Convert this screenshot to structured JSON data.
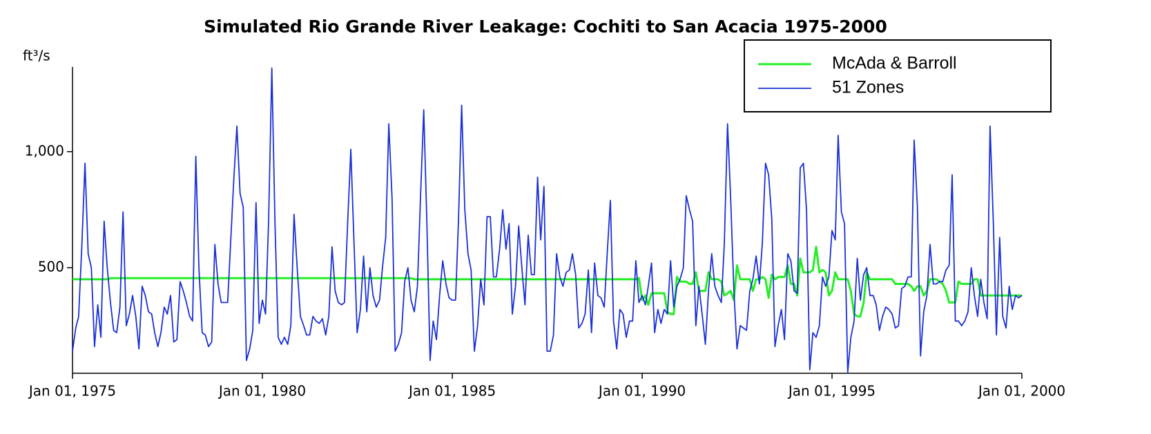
{
  "chart_data": {
    "type": "line",
    "title": "Simulated Rio Grande River Leakage: Cochiti to San Acacia 1975-2000",
    "y_label": "ft³/s",
    "xlim": [
      "1975-01-01",
      "2000-01-01"
    ],
    "xticks": [
      {
        "value": "1975-01-01",
        "label": "Jan 01, 1975"
      },
      {
        "value": "1980-01-01",
        "label": "Jan 01, 1980"
      },
      {
        "value": "1985-01-01",
        "label": "Jan 01, 1985"
      },
      {
        "value": "1990-01-01",
        "label": "Jan 01, 1990"
      },
      {
        "value": "1995-01-01",
        "label": "Jan 01, 1995"
      },
      {
        "value": "2000-01-01",
        "label": "Jan 01, 2000"
      }
    ],
    "ylim": [
      45,
      1365
    ],
    "yticks": [
      500,
      {
        "value": 1000,
        "label": "1,000"
      }
    ],
    "legend": "top-right",
    "x": [
      "1975-01-01",
      "1975-02-01",
      "1975-03-01",
      "1975-04-01",
      "1975-05-01",
      "1975-06-01",
      "1975-07-01",
      "1975-08-01",
      "1975-09-01",
      "1975-10-01",
      "1975-11-01",
      "1975-12-01",
      "1976-01-01",
      "1976-02-01",
      "1976-03-01",
      "1976-04-01",
      "1976-05-01",
      "1976-06-01",
      "1976-07-01",
      "1976-08-01",
      "1976-09-01",
      "1976-10-01",
      "1976-11-01",
      "1976-12-01",
      "1977-01-01",
      "1977-02-01",
      "1977-03-01",
      "1977-04-01",
      "1977-05-01",
      "1977-06-01",
      "1977-07-01",
      "1977-08-01",
      "1977-09-01",
      "1977-10-01",
      "1977-11-01",
      "1977-12-01",
      "1978-01-01",
      "1978-02-01",
      "1978-03-01",
      "1978-04-01",
      "1978-05-01",
      "1978-06-01",
      "1978-07-01",
      "1978-08-01",
      "1978-09-01",
      "1978-10-01",
      "1978-11-01",
      "1978-12-01",
      "1979-01-01",
      "1979-02-01",
      "1979-03-01",
      "1979-04-01",
      "1979-05-01",
      "1979-06-01",
      "1979-07-01",
      "1979-08-01",
      "1979-09-01",
      "1979-10-01",
      "1979-11-01",
      "1979-12-01",
      "1980-01-01",
      "1980-02-01",
      "1980-03-01",
      "1980-04-01",
      "1980-05-01",
      "1980-06-01",
      "1980-07-01",
      "1980-08-01",
      "1980-09-01",
      "1980-10-01",
      "1980-11-01",
      "1980-12-01",
      "1981-01-01",
      "1981-02-01",
      "1981-03-01",
      "1981-04-01",
      "1981-05-01",
      "1981-06-01",
      "1981-07-01",
      "1981-08-01",
      "1981-09-01",
      "1981-10-01",
      "1981-11-01",
      "1981-12-01",
      "1982-01-01",
      "1982-02-01",
      "1982-03-01",
      "1982-04-01",
      "1982-05-01",
      "1982-06-01",
      "1982-07-01",
      "1982-08-01",
      "1982-09-01",
      "1982-10-01",
      "1982-11-01",
      "1982-12-01",
      "1983-01-01",
      "1983-02-01",
      "1983-03-01",
      "1983-04-01",
      "1983-05-01",
      "1983-06-01",
      "1983-07-01",
      "1983-08-01",
      "1983-09-01",
      "1983-10-01",
      "1983-11-01",
      "1983-12-01",
      "1984-01-01",
      "1984-02-01",
      "1984-03-01",
      "1984-04-01",
      "1984-05-01",
      "1984-06-01",
      "1984-07-01",
      "1984-08-01",
      "1984-09-01",
      "1984-10-01",
      "1984-11-01",
      "1984-12-01",
      "1985-01-01",
      "1985-02-01",
      "1985-03-01",
      "1985-04-01",
      "1985-05-01",
      "1985-06-01",
      "1985-07-01",
      "1985-08-01",
      "1985-09-01",
      "1985-10-01",
      "1985-11-01",
      "1985-12-01",
      "1986-01-01",
      "1986-02-01",
      "1986-03-01",
      "1986-04-01",
      "1986-05-01",
      "1986-06-01",
      "1986-07-01",
      "1986-08-01",
      "1986-09-01",
      "1986-10-01",
      "1986-11-01",
      "1986-12-01",
      "1987-01-01",
      "1987-02-01",
      "1987-03-01",
      "1987-04-01",
      "1987-05-01",
      "1987-06-01",
      "1987-07-01",
      "1987-08-01",
      "1987-09-01",
      "1987-10-01",
      "1987-11-01",
      "1987-12-01",
      "1988-01-01",
      "1988-02-01",
      "1988-03-01",
      "1988-04-01",
      "1988-05-01",
      "1988-06-01",
      "1988-07-01",
      "1988-08-01",
      "1988-09-01",
      "1988-10-01",
      "1988-11-01",
      "1988-12-01",
      "1989-01-01",
      "1989-02-01",
      "1989-03-01",
      "1989-04-01",
      "1989-05-01",
      "1989-06-01",
      "1989-07-01",
      "1989-08-01",
      "1989-09-01",
      "1989-10-01",
      "1989-11-01",
      "1989-12-01",
      "1990-01-01",
      "1990-02-01",
      "1990-03-01",
      "1990-04-01",
      "1990-05-01",
      "1990-06-01",
      "1990-07-01",
      "1990-08-01",
      "1990-09-01",
      "1990-10-01",
      "1990-11-01",
      "1990-12-01",
      "1991-01-01",
      "1991-02-01",
      "1991-03-01",
      "1991-04-01",
      "1991-05-01",
      "1991-06-01",
      "1991-07-01",
      "1991-08-01",
      "1991-09-01",
      "1991-10-01",
      "1991-11-01",
      "1991-12-01",
      "1992-01-01",
      "1992-02-01",
      "1992-03-01",
      "1992-04-01",
      "1992-05-01",
      "1992-06-01",
      "1992-07-01",
      "1992-08-01",
      "1992-09-01",
      "1992-10-01",
      "1992-11-01",
      "1992-12-01",
      "1993-01-01",
      "1993-02-01",
      "1993-03-01",
      "1993-04-01",
      "1993-05-01",
      "1993-06-01",
      "1993-07-01",
      "1993-08-01",
      "1993-09-01",
      "1993-10-01",
      "1993-11-01",
      "1993-12-01",
      "1994-01-01",
      "1994-02-01",
      "1994-03-01",
      "1994-04-01",
      "1994-05-01",
      "1994-06-01",
      "1994-07-01",
      "1994-08-01",
      "1994-09-01",
      "1994-10-01",
      "1994-11-01",
      "1994-12-01",
      "1995-01-01",
      "1995-02-01",
      "1995-03-01",
      "1995-04-01",
      "1995-05-01",
      "1995-06-01",
      "1995-07-01",
      "1995-08-01",
      "1995-09-01",
      "1995-10-01",
      "1995-11-01",
      "1995-12-01",
      "1996-01-01",
      "1996-02-01",
      "1996-03-01",
      "1996-04-01",
      "1996-05-01",
      "1996-06-01",
      "1996-07-01",
      "1996-08-01",
      "1996-09-01",
      "1996-10-01",
      "1996-11-01",
      "1996-12-01",
      "1997-01-01",
      "1997-02-01",
      "1997-03-01",
      "1997-04-01",
      "1997-05-01",
      "1997-06-01",
      "1997-07-01",
      "1997-08-01",
      "1997-09-01",
      "1997-10-01",
      "1997-11-01",
      "1997-12-01",
      "1998-01-01",
      "1998-02-01",
      "1998-03-01",
      "1998-04-01",
      "1998-05-01",
      "1998-06-01",
      "1998-07-01",
      "1998-08-01",
      "1998-09-01",
      "1998-10-01",
      "1998-11-01",
      "1998-12-01",
      "1999-01-01",
      "1999-02-01",
      "1999-03-01",
      "1999-04-01",
      "1999-05-01",
      "1999-06-01",
      "1999-07-01",
      "1999-08-01",
      "1999-09-01",
      "1999-10-01",
      "1999-11-01",
      "1999-12-01",
      "2000-01-01"
    ],
    "series": [
      {
        "name": "McAda & Barroll",
        "color": "#22ee22",
        "values": [
          450,
          450,
          450,
          450,
          450,
          450,
          450,
          450,
          450,
          450,
          450,
          450,
          455,
          455,
          455,
          455,
          455,
          455,
          455,
          455,
          455,
          455,
          455,
          455,
          455,
          455,
          455,
          455,
          455,
          455,
          455,
          455,
          455,
          455,
          455,
          455,
          455,
          455,
          455,
          455,
          455,
          455,
          455,
          455,
          455,
          455,
          455,
          455,
          455,
          455,
          455,
          455,
          455,
          455,
          455,
          455,
          455,
          455,
          455,
          455,
          455,
          455,
          455,
          455,
          455,
          455,
          455,
          455,
          455,
          455,
          455,
          455,
          455,
          455,
          455,
          455,
          455,
          455,
          455,
          455,
          455,
          455,
          455,
          455,
          455,
          455,
          455,
          455,
          455,
          455,
          455,
          455,
          455,
          455,
          455,
          455,
          455,
          455,
          455,
          455,
          455,
          455,
          455,
          455,
          455,
          455,
          455,
          455,
          450,
          450,
          450,
          450,
          450,
          450,
          450,
          450,
          450,
          450,
          450,
          450,
          450,
          450,
          450,
          450,
          450,
          450,
          450,
          450,
          450,
          450,
          450,
          450,
          450,
          450,
          450,
          450,
          450,
          450,
          450,
          450,
          450,
          450,
          450,
          450,
          450,
          450,
          450,
          450,
          450,
          450,
          450,
          450,
          450,
          450,
          450,
          450,
          450,
          450,
          450,
          450,
          450,
          450,
          450,
          450,
          450,
          450,
          450,
          450,
          450,
          450,
          450,
          450,
          450,
          450,
          450,
          450,
          450,
          450,
          450,
          455,
          360,
          380,
          340,
          390,
          390,
          390,
          390,
          390,
          310,
          300,
          300,
          460,
          440,
          440,
          440,
          430,
          430,
          480,
          400,
          400,
          400,
          480,
          450,
          450,
          450,
          440,
          380,
          390,
          400,
          360,
          510,
          450,
          450,
          450,
          450,
          400,
          450,
          450,
          460,
          450,
          370,
          470,
          450,
          460,
          460,
          460,
          510,
          430,
          430,
          380,
          540,
          480,
          480,
          480,
          490,
          590,
          480,
          490,
          480,
          380,
          400,
          480,
          450,
          450,
          450,
          450,
          400,
          300,
          290,
          290,
          350,
          480,
          450,
          450,
          450,
          450,
          450,
          450,
          450,
          450,
          430,
          430,
          430,
          430,
          430,
          420,
          400,
          420,
          420,
          380,
          400,
          450,
          450,
          450,
          440,
          430,
          400,
          350,
          350,
          350,
          440,
          430,
          430,
          430,
          430,
          450,
          450,
          380,
          380,
          380,
          380,
          380,
          380,
          380,
          380,
          380,
          380,
          380,
          380,
          380,
          380
        ]
      },
      {
        "name": "51 Zones",
        "color": "#1a2fd6",
        "values": [
          140,
          240,
          290,
          600,
          950,
          560,
          500,
          160,
          340,
          200,
          700,
          500,
          350,
          230,
          220,
          330,
          740,
          250,
          300,
          380,
          290,
          150,
          420,
          380,
          310,
          300,
          220,
          160,
          220,
          330,
          300,
          380,
          180,
          190,
          440,
          400,
          350,
          290,
          270,
          980,
          500,
          220,
          210,
          160,
          180,
          600,
          430,
          350,
          350,
          350,
          600,
          880,
          1110,
          820,
          760,
          100,
          150,
          230,
          780,
          260,
          360,
          300,
          700,
          1360,
          700,
          200,
          170,
          200,
          170,
          250,
          730,
          500,
          290,
          250,
          210,
          210,
          290,
          270,
          260,
          280,
          210,
          290,
          590,
          400,
          350,
          340,
          350,
          700,
          1010,
          600,
          220,
          320,
          550,
          310,
          500,
          380,
          330,
          360,
          500,
          630,
          1120,
          800,
          140,
          170,
          220,
          440,
          500,
          360,
          310,
          420,
          800,
          1180,
          700,
          100,
          270,
          190,
          380,
          530,
          430,
          370,
          360,
          360,
          700,
          1200,
          750,
          560,
          490,
          140,
          250,
          450,
          340,
          720,
          720,
          460,
          460,
          580,
          750,
          580,
          690,
          300,
          420,
          680,
          500,
          340,
          640,
          470,
          470,
          890,
          620,
          850,
          140,
          140,
          210,
          560,
          460,
          420,
          480,
          490,
          560,
          470,
          240,
          260,
          300,
          490,
          220,
          520,
          380,
          370,
          330,
          580,
          790,
          270,
          150,
          320,
          300,
          200,
          270,
          270,
          530,
          350,
          380,
          340,
          420,
          520,
          220,
          320,
          260,
          320,
          300,
          530,
          330,
          420,
          450,
          500,
          810,
          750,
          700,
          250,
          420,
          300,
          170,
          400,
          560,
          420,
          380,
          350,
          600,
          1120,
          800,
          400,
          150,
          250,
          240,
          230,
          400,
          450,
          550,
          430,
          600,
          950,
          900,
          710,
          160,
          250,
          320,
          190,
          560,
          530,
          400,
          390,
          930,
          950,
          750,
          60,
          220,
          200,
          250,
          460,
          420,
          460,
          660,
          620,
          1070,
          740,
          690,
          50,
          200,
          270,
          540,
          360,
          470,
          500,
          380,
          380,
          340,
          230,
          290,
          330,
          320,
          300,
          240,
          250,
          410,
          420,
          460,
          460,
          1050,
          760,
          120,
          310,
          380,
          600,
          430,
          430,
          440,
          440,
          490,
          510,
          900,
          270,
          270,
          250,
          270,
          310,
          500,
          380,
          290,
          450,
          350,
          280,
          1110,
          700,
          210,
          630,
          290,
          240,
          420,
          320,
          380,
          370,
          380
        ]
      }
    ]
  }
}
